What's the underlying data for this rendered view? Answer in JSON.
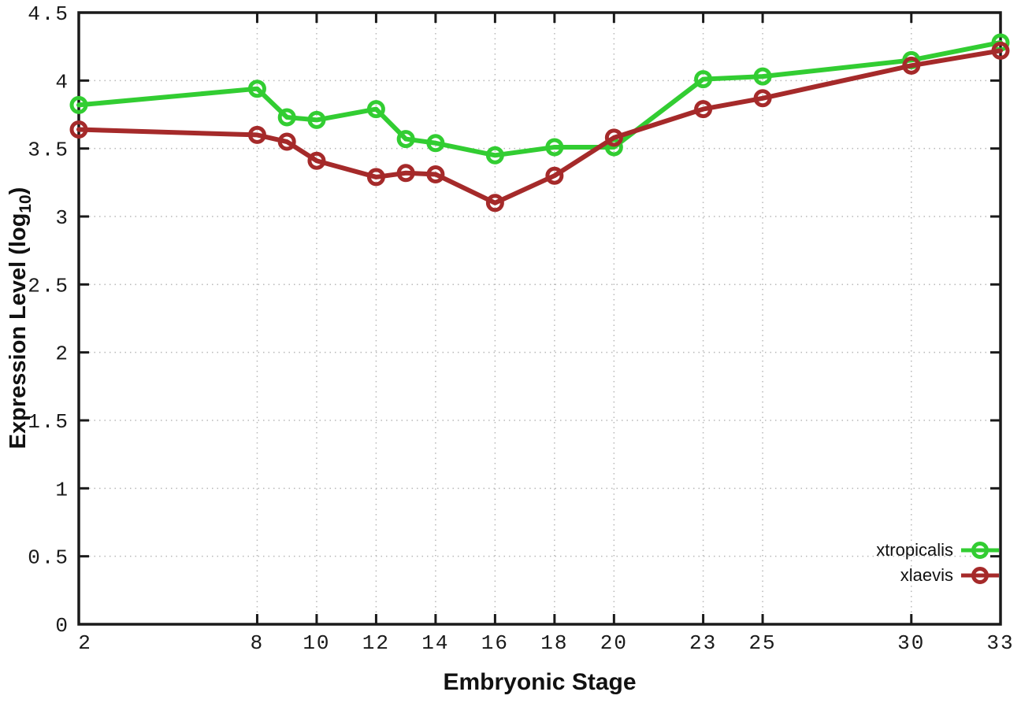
{
  "chart_data": {
    "type": "line",
    "title": "",
    "xlabel": "Embryonic Stage",
    "ylabel": "Expression Level (log10)",
    "ylabel_rich": {
      "pre": "Expression Level (log",
      "sub": "10",
      "post": ")"
    },
    "x": [
      2,
      8,
      9,
      10,
      12,
      13,
      14,
      16,
      18,
      20,
      23,
      25,
      30,
      33
    ],
    "series": [
      {
        "name": "xtropicalis",
        "color": "#32cd32",
        "values": [
          3.82,
          3.94,
          3.73,
          3.71,
          3.79,
          3.57,
          3.54,
          3.45,
          3.51,
          3.51,
          4.01,
          4.03,
          4.15,
          4.28
        ]
      },
      {
        "name": "xlaevis",
        "color": "#a52a2a",
        "values": [
          3.64,
          3.6,
          3.55,
          3.41,
          3.29,
          3.32,
          3.31,
          3.1,
          3.3,
          3.58,
          3.79,
          3.87,
          4.11,
          4.22
        ]
      }
    ],
    "x_ticks": [
      2,
      8,
      10,
      12,
      14,
      16,
      18,
      20,
      23,
      25,
      30,
      33
    ],
    "y_ticks": [
      0,
      0.5,
      1,
      1.5,
      2,
      2.5,
      3,
      3.5,
      4,
      4.5
    ],
    "xlim": [
      2,
      33
    ],
    "ylim": [
      0,
      4.5
    ],
    "grid": true,
    "legend_position": "bottom-right",
    "marker": "open-circle"
  },
  "colors": {
    "background": "#ffffff",
    "axis": "#1a1a1a",
    "grid": "#b8b8b8",
    "tick_label": "#1a1a1a"
  }
}
